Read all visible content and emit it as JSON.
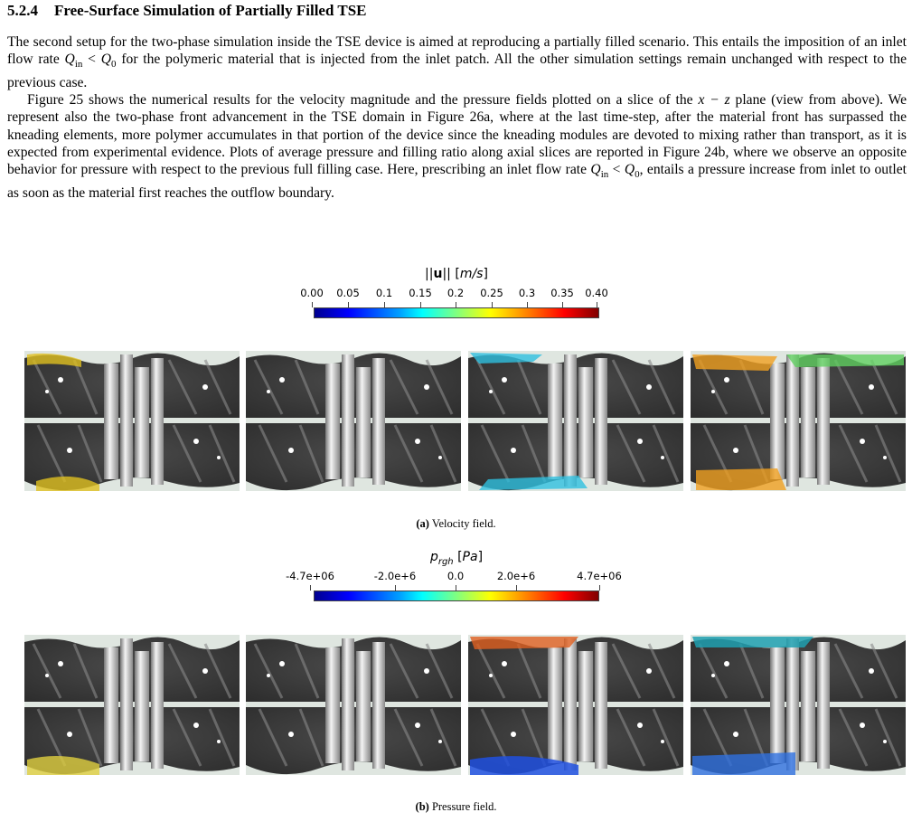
{
  "heading": {
    "number": "5.2.4",
    "title": "Free-Surface Simulation of Partially Filled TSE"
  },
  "paragraphs": [
    [
      "The second setup for the two-phase simulation inside the TSE device is aimed at reproducing a partially filled scenario. This entails the imposition of an inlet flow rate ",
      {
        "italic": "Q",
        "sub": "in"
      },
      " < ",
      {
        "italic": "Q",
        "sub": "0"
      },
      " for the polymeric material that is injected from the inlet patch. All the other simulation settings remain unchanged with respect to the previous case."
    ],
    [
      "Figure 25 shows the numerical results for the velocity magnitude and the pressure fields plotted on a slice of the ",
      {
        "italic": "x − z"
      },
      " plane (view from above). We represent also the two-phase front advancement in the TSE domain in Figure 26a, where at the last time-step, after the material front has surpassed the kneading elements, more polymer accumulates in that portion of the device since the kneading modules are devoted to mixing rather than transport, as it is expected from experimental evidence. Plots of average pressure and filling ratio along axial slices are reported in Figure 24b, where we observe an opposite behavior for pressure with respect to the previous full filling case. Here, prescribing an inlet flow rate ",
      {
        "italic": "Q",
        "sub": "in"
      },
      " < ",
      {
        "italic": "Q",
        "sub": "0"
      },
      ", entails a pressure increase from inlet to outlet as soon as the material first reaches the outflow boundary."
    ]
  ],
  "figures": [
    {
      "colorbar": {
        "title": [
          "||",
          "u",
          "|| [",
          "m/s",
          "]"
        ],
        "labels": [
          "0.00",
          "0.05",
          "0.1",
          "0.15",
          "0.2",
          "0.25",
          "0.3",
          "0.35",
          "0.40"
        ]
      },
      "caption": {
        "label": "(a)",
        "text": "Velocity field."
      }
    },
    {
      "colorbar": {
        "title": [
          "p",
          "rgh",
          " [",
          "Pa",
          "]"
        ],
        "labels": [
          "-4.7e+06",
          "-2.0e+6",
          "0.0",
          "2.0e+6",
          "4.7e+06"
        ]
      },
      "caption": {
        "label": "(b)",
        "text": "Pressure field."
      }
    }
  ]
}
